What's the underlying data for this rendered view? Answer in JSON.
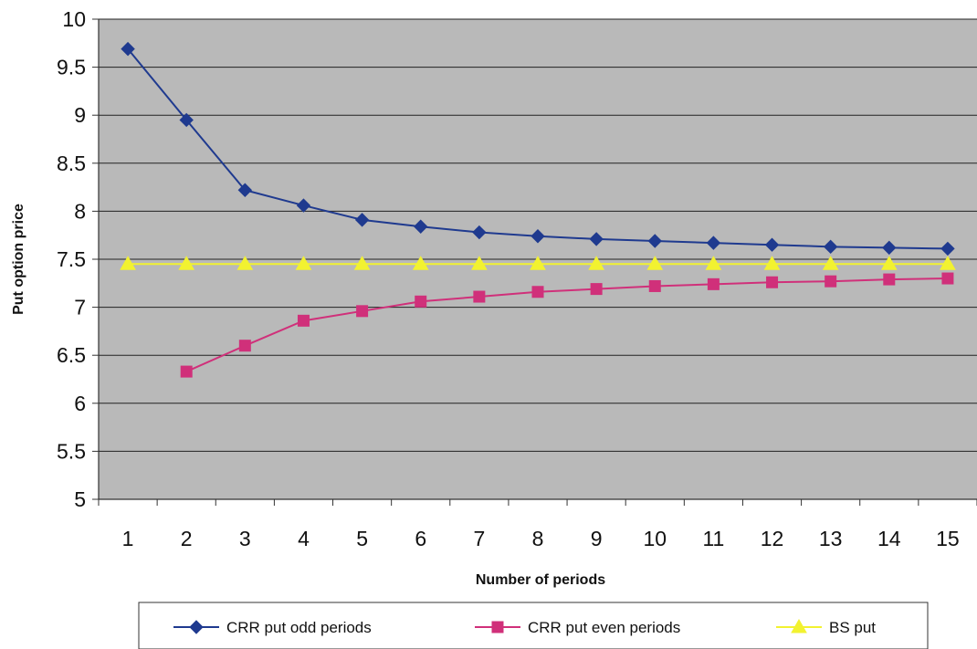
{
  "chart_data": {
    "type": "line",
    "title": "",
    "xlabel": "Number of periods",
    "ylabel": "Put option price",
    "categories": [
      1,
      2,
      3,
      4,
      5,
      6,
      7,
      8,
      9,
      10,
      11,
      12,
      13,
      14,
      15
    ],
    "ylim": [
      5,
      10
    ],
    "yticks": [
      "5",
      "5.5",
      "6",
      "6.5",
      "7",
      "7.5",
      "8",
      "8.5",
      "9",
      "9.5",
      "10"
    ],
    "grid": true,
    "legend_position": "bottom",
    "series": [
      {
        "name": "CRR put odd periods",
        "color": "#1f3a8f",
        "marker": "diamond",
        "values": [
          9.69,
          8.95,
          8.22,
          8.06,
          7.91,
          7.84,
          7.78,
          7.74,
          7.71,
          7.69,
          7.67,
          7.65,
          7.63,
          7.62,
          7.61
        ]
      },
      {
        "name": "CRR put even periods",
        "color": "#d0307a",
        "marker": "square",
        "values": [
          null,
          6.33,
          6.6,
          6.86,
          6.96,
          7.06,
          7.11,
          7.16,
          7.19,
          7.22,
          7.24,
          7.26,
          7.27,
          7.29,
          7.3
        ]
      },
      {
        "name": "BS put",
        "color": "#f2f230",
        "marker": "triangle",
        "values": [
          7.45,
          7.45,
          7.45,
          7.45,
          7.45,
          7.45,
          7.45,
          7.45,
          7.45,
          7.45,
          7.45,
          7.45,
          7.45,
          7.45,
          7.45
        ]
      }
    ]
  }
}
